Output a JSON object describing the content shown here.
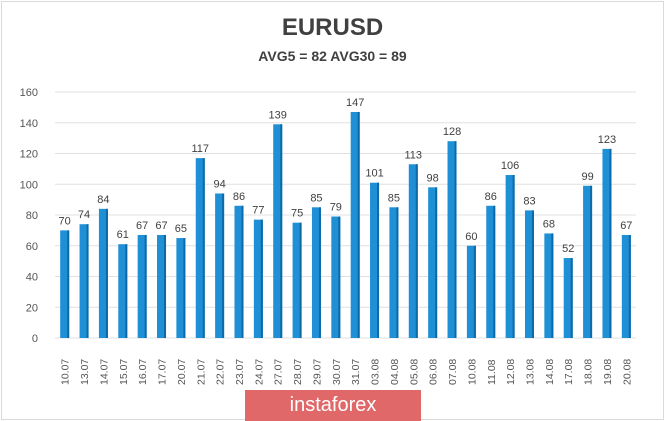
{
  "chart_data": {
    "type": "bar",
    "title": "EURUSD",
    "subtitle": "AVG5 = 82 AVG30 = 89",
    "xlabel": "",
    "ylabel": "",
    "ylim": [
      0,
      160
    ],
    "yticks": [
      0,
      20,
      40,
      60,
      80,
      100,
      120,
      140,
      160
    ],
    "grid": true,
    "categories": [
      "10.07",
      "13.07",
      "14.07",
      "15.07",
      "16.07",
      "17.07",
      "20.07",
      "21.07",
      "22.07",
      "23.07",
      "24.07",
      "27.07",
      "28.07",
      "29.07",
      "30.07",
      "31.07",
      "03.08",
      "04.08",
      "05.08",
      "06.08",
      "07.08",
      "10.08",
      "11.08",
      "12.08",
      "13.08",
      "14.08",
      "17.08",
      "18.08",
      "19.08",
      "20.08"
    ],
    "values": [
      70,
      74,
      84,
      61,
      67,
      67,
      65,
      117,
      94,
      86,
      77,
      139,
      75,
      85,
      79,
      147,
      101,
      85,
      113,
      98,
      128,
      60,
      86,
      106,
      83,
      68,
      52,
      99,
      123,
      67
    ],
    "bar_color": "#1f8fd6"
  },
  "watermark": "instaforex"
}
